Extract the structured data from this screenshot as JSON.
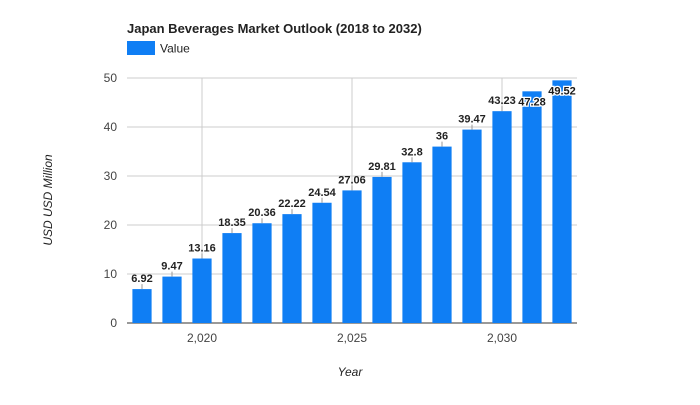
{
  "chart_data": {
    "type": "bar",
    "title": "Japan Beverages Market Outlook (2018 to 2032)",
    "xlabel": "Year",
    "ylabel": "USD USD Million",
    "legend": {
      "label": "Value",
      "position": "top-left"
    },
    "ylim": [
      0,
      50
    ],
    "yticks": [
      "0",
      "10",
      "20",
      "30",
      "40",
      "50"
    ],
    "xlim": [
      2017.5,
      2032.5
    ],
    "xticks": [
      {
        "value": 2020,
        "label": "2,020"
      },
      {
        "value": 2025,
        "label": "2,025"
      },
      {
        "value": 2030,
        "label": "2,030"
      }
    ],
    "grid": true,
    "categories": [
      2018,
      2019,
      2020,
      2021,
      2022,
      2023,
      2024,
      2025,
      2026,
      2027,
      2028,
      2029,
      2030,
      2031,
      2032
    ],
    "series": [
      {
        "name": "Value",
        "color": "#0f7ef4",
        "values": [
          6.92,
          9.47,
          13.16,
          18.35,
          20.36,
          22.22,
          24.54,
          27.06,
          29.81,
          32.8,
          36,
          39.47,
          43.23,
          47.28,
          49.52
        ],
        "labels": [
          "6.92",
          "9.47",
          "13.16",
          "18.35",
          "20.36",
          "22.22",
          "24.54",
          "27.06",
          "29.81",
          "32.8",
          "36",
          "39.47",
          "43.23",
          "47.28",
          "49.52"
        ]
      }
    ]
  }
}
